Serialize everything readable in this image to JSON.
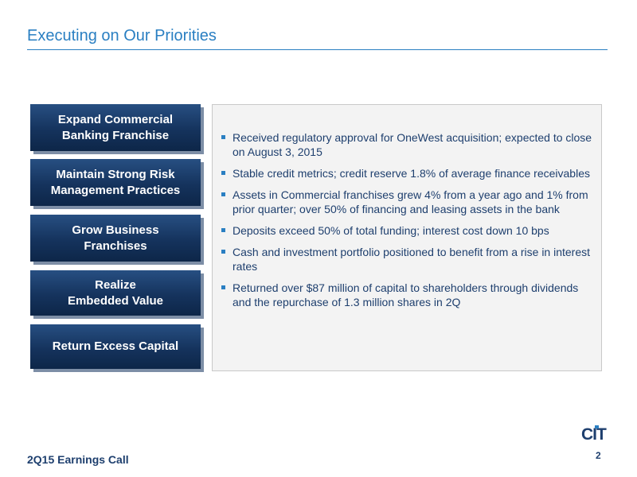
{
  "slide": {
    "title": "Executing on Our Priorities",
    "priorities": [
      "Expand Commercial\nBanking Franchise",
      "Maintain Strong Risk\nManagement Practices",
      "Grow Business\nFranchises",
      "Realize\nEmbedded Value",
      "Return Excess Capital"
    ],
    "bullets": [
      "Received regulatory approval for OneWest acquisition; expected to close on August 3, 2015",
      "Stable credit metrics; credit reserve 1.8% of average finance receivables",
      "Assets in Commercial franchises grew 4% from a year ago and 1% from prior quarter; over 50% of financing and leasing assets in the bank",
      "Deposits exceed 50% of total funding; interest cost down 10 bps",
      "Cash and investment portfolio positioned to benefit from a rise in interest rates",
      "Returned over $87 million of capital to shareholders through dividends and the repurchase of 1.3 million shares in 2Q"
    ]
  },
  "footer": {
    "event": "2Q15 Earnings Call",
    "page": "2",
    "logo_text": "CIT"
  },
  "colors": {
    "accent": "#2a7fc2",
    "navy": "#15335d",
    "text": "#1e3f6e"
  }
}
